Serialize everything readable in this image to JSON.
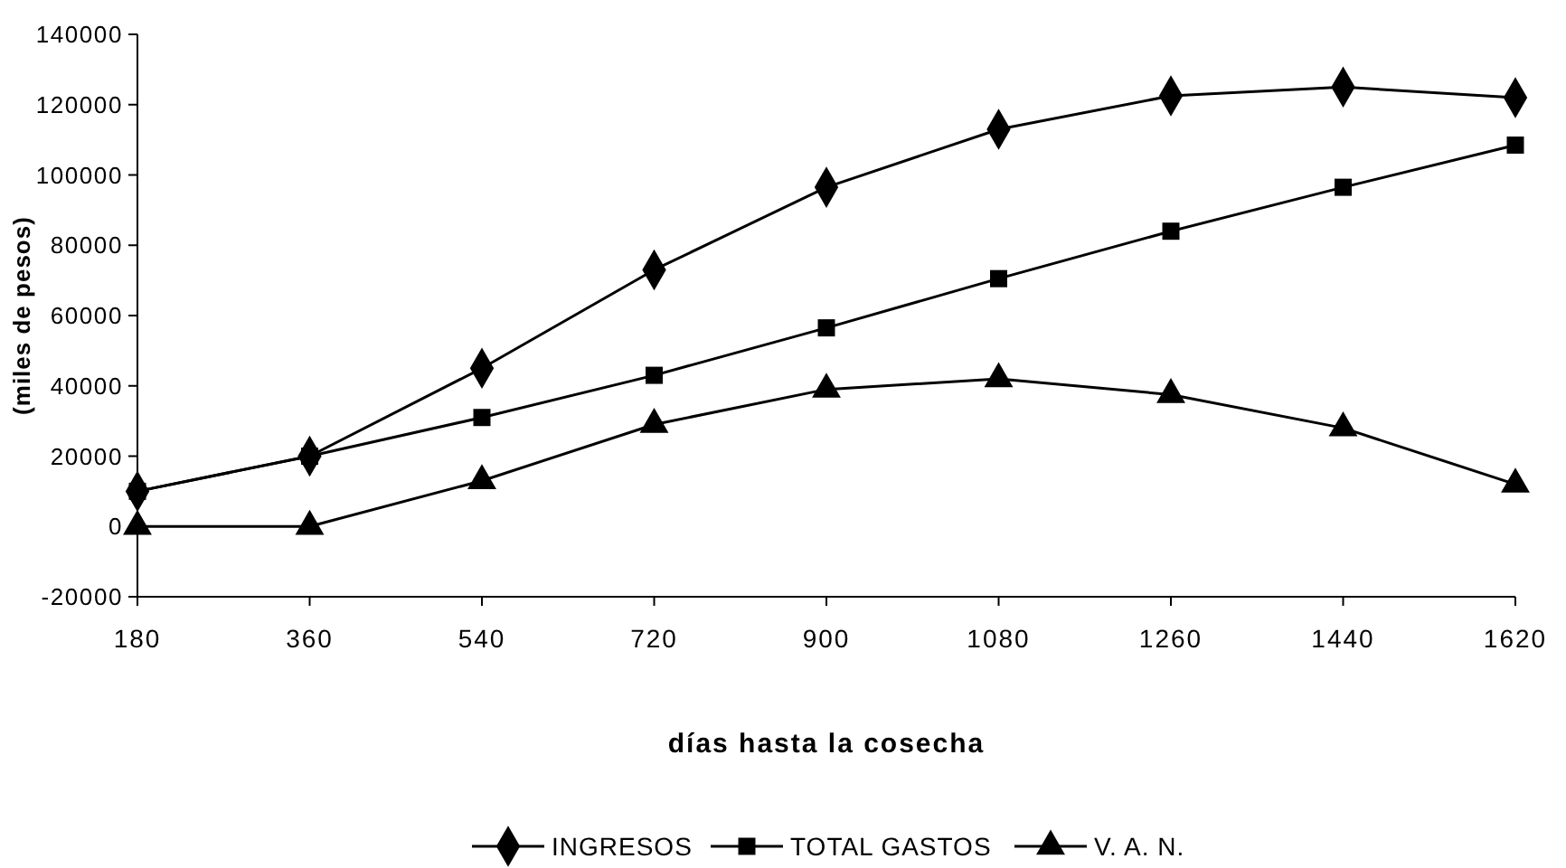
{
  "chart_data": {
    "type": "line",
    "xlabel": "días hasta la cosecha",
    "ylabel": "(miles de pesos)",
    "x": [
      180,
      360,
      540,
      720,
      900,
      1080,
      1260,
      1440,
      1620
    ],
    "xlim": [
      180,
      1620
    ],
    "xticks": [
      180,
      360,
      540,
      720,
      900,
      1080,
      1260,
      1440,
      1620
    ],
    "ylim": [
      -20000,
      140000
    ],
    "yticks": [
      -20000,
      0,
      20000,
      40000,
      60000,
      80000,
      100000,
      120000,
      140000
    ],
    "grid": false,
    "legend": "bottom",
    "line_style": "solid",
    "series": [
      {
        "name": "INGRESOS",
        "color": "#000000",
        "marker": "diamond",
        "values": [
          10000,
          20000,
          45000,
          73000,
          96500,
          113000,
          122500,
          125000,
          122000
        ]
      },
      {
        "name": "TOTAL GASTOS",
        "color": "#000000",
        "marker": "square",
        "values": [
          10000,
          20000,
          31000,
          43000,
          56500,
          70500,
          84000,
          96500,
          108500
        ]
      },
      {
        "name": "V. A. N.",
        "color": "#000000",
        "marker": "triangle",
        "values": [
          0,
          0,
          13000,
          29000,
          39000,
          42000,
          37500,
          28000,
          12000
        ]
      }
    ]
  }
}
